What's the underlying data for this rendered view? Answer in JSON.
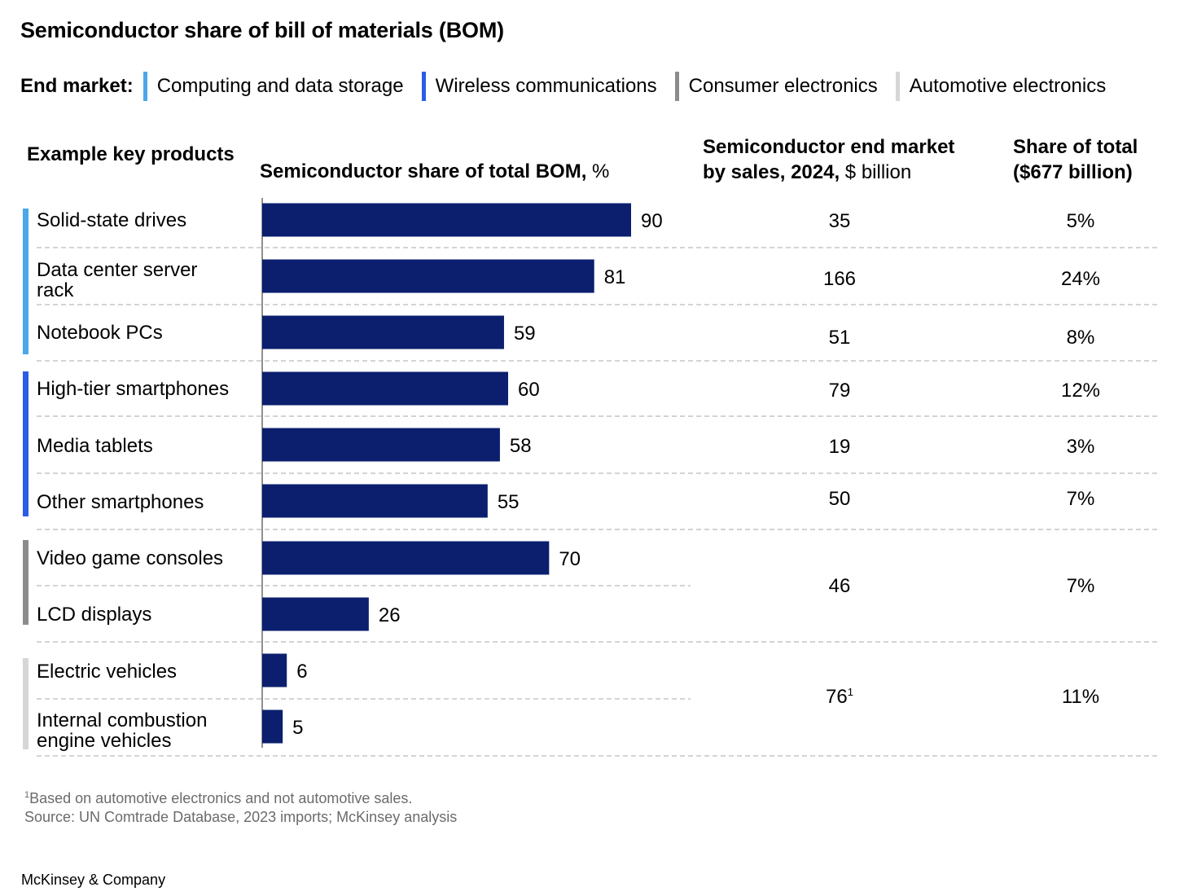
{
  "title": "Semiconductor share of bill of materials (BOM)",
  "legend": {
    "lead": "End market:",
    "items": [
      {
        "label": "Computing and data storage",
        "color": "#4aa8e8"
      },
      {
        "label": "Wireless communications",
        "color": "#2a5ce6"
      },
      {
        "label": "Consumer electronics",
        "color": "#8c8c8c"
      },
      {
        "label": "Automotive electronics",
        "color": "#d6d6d6"
      }
    ]
  },
  "headers": {
    "products": "Example key products",
    "bom_bold": "Semiconductor share of total BOM,",
    "bom_unit": " %",
    "market_line1": "Semiconductor end market",
    "market_line2_bold": "by sales, 2024,",
    "market_unit": " $ billion",
    "share_line1": "Share of total",
    "share_line2": "($677 billion)"
  },
  "bar_color": "#0b1f6e",
  "chart_data": {
    "type": "bar",
    "orientation": "horizontal",
    "categories": [
      "Solid-state drives",
      "Data center server rack",
      "Notebook PCs",
      "High-tier smartphones",
      "Media tablets",
      "Other smartphones",
      "Video game consoles",
      "LCD displays",
      "Electric vehicles",
      "Internal combustion engine vehicles"
    ],
    "values": [
      90,
      81,
      59,
      60,
      58,
      55,
      70,
      26,
      6,
      5
    ],
    "data_labels": [
      "90",
      "81",
      "59",
      "60",
      "58",
      "55",
      "70",
      "26",
      "6",
      "5"
    ],
    "xlim": [
      0,
      90
    ],
    "groups": [
      {
        "end_market": "Computing and data storage",
        "products": [
          "Solid-state drives",
          "Data center server rack",
          "Notebook PCs"
        ]
      },
      {
        "end_market": "Wireless communications",
        "products": [
          "High-tier smartphones",
          "Media tablets",
          "Other smartphones"
        ]
      },
      {
        "end_market": "Consumer electronics",
        "products": [
          "Video game consoles",
          "LCD displays"
        ]
      },
      {
        "end_market": "Automotive electronics",
        "products": [
          "Electric vehicles",
          "Internal combustion engine vehicles"
        ]
      }
    ]
  },
  "rows": [
    {
      "label": "Solid-state drives",
      "group": 0
    },
    {
      "label": "Data center server rack",
      "group": 0
    },
    {
      "label": "Notebook PCs",
      "group": 0
    },
    {
      "label": "High-tier smartphones",
      "group": 1
    },
    {
      "label": "Media tablets",
      "group": 1
    },
    {
      "label": "Other smartphones",
      "group": 1
    },
    {
      "label": "Video game consoles",
      "group": 2
    },
    {
      "label": "LCD displays",
      "group": 2
    },
    {
      "label": "Electric vehicles",
      "group": 3
    },
    {
      "label": "Internal combustion engine vehicles",
      "group": 3
    }
  ],
  "market_table": [
    {
      "sales": "35",
      "share": "5%"
    },
    {
      "sales": "166",
      "share": "24%"
    },
    {
      "sales": "51",
      "share": "8%"
    },
    {
      "sales": "79",
      "share": "12%"
    },
    {
      "sales": "19",
      "share": "3%"
    },
    {
      "sales": "50",
      "share": "7%"
    },
    {
      "sales": "46",
      "share": "7%"
    },
    {
      "sales": "76",
      "sales_note": "1",
      "share": "11%"
    }
  ],
  "footnotes": {
    "note_mark": "1",
    "note": "Based on automotive electronics and not automotive sales.",
    "source": "Source: UN Comtrade Database, 2023 imports; McKinsey analysis"
  },
  "brand": "McKinsey & Company"
}
